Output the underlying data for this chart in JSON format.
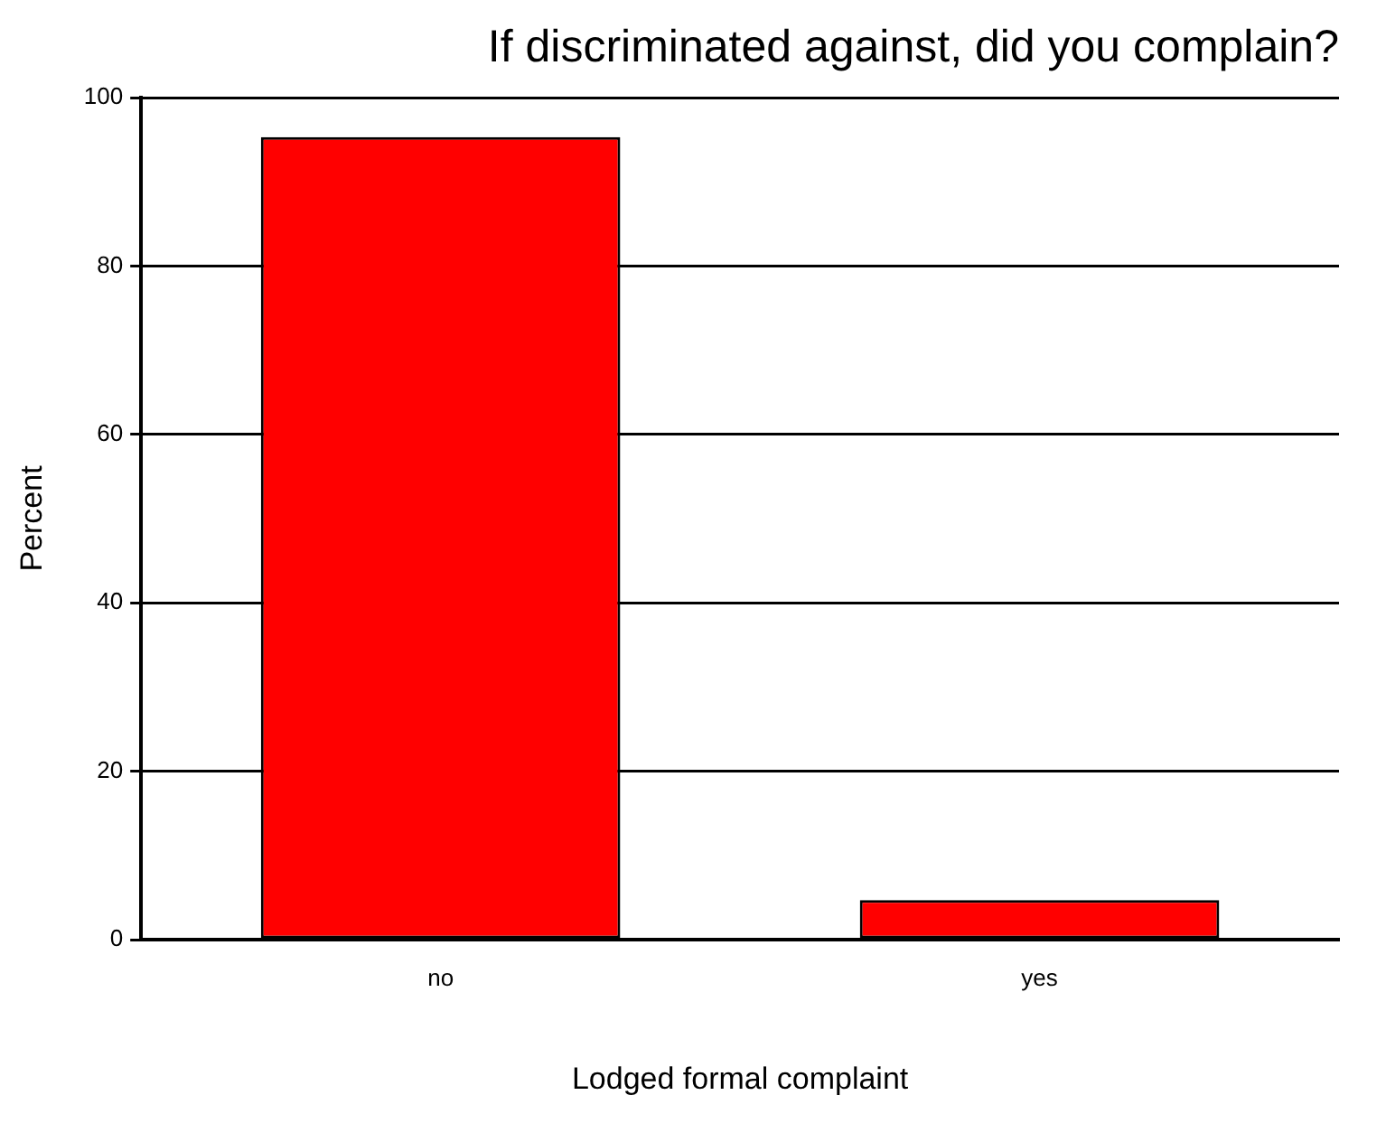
{
  "chart_data": {
    "type": "bar",
    "title": "If discriminated against, did you complain?",
    "xlabel": "Lodged formal complaint",
    "ylabel": "Percent",
    "categories": [
      "no",
      "yes"
    ],
    "values": [
      95.3,
      4.7
    ],
    "color": "#ff0000",
    "ylim": [
      0,
      100
    ],
    "yticks": [
      0,
      20,
      40,
      60,
      80,
      100
    ],
    "grid": "y"
  }
}
